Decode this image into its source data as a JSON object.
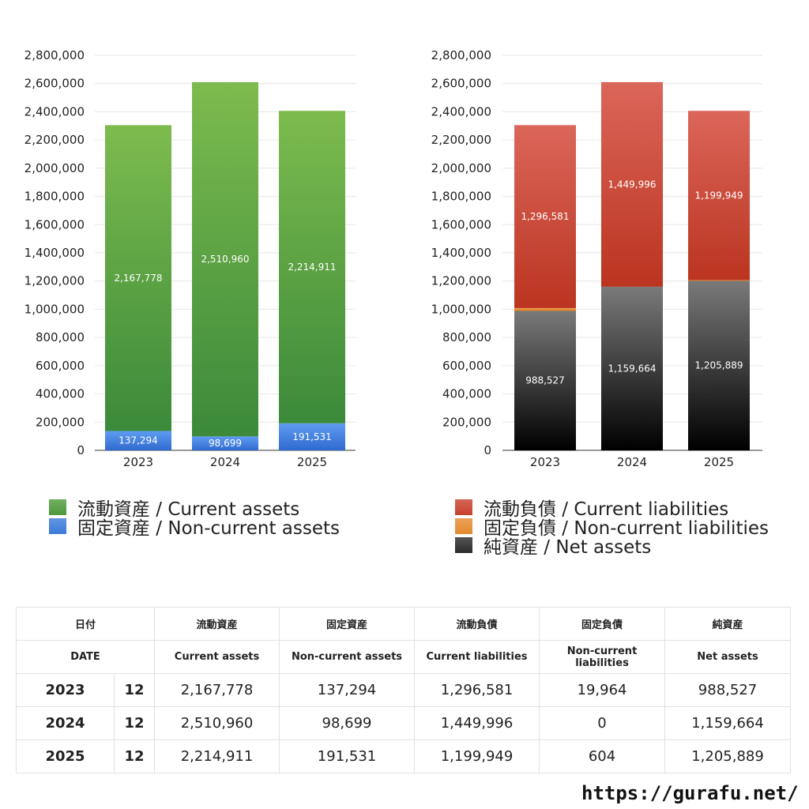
{
  "chart_data": [
    {
      "type": "bar",
      "stacked": true,
      "categories": [
        "2023",
        "2024",
        "2025"
      ],
      "ylim": [
        0,
        2800000
      ],
      "yticks": [
        "0",
        "200,000",
        "400,000",
        "600,000",
        "800,000",
        "1,000,000",
        "1,200,000",
        "1,400,000",
        "1,600,000",
        "1,800,000",
        "2,000,000",
        "2,200,000",
        "2,400,000",
        "2,600,000",
        "2,800,000"
      ],
      "grid": true,
      "series": [
        {
          "name": "固定資産 / Non-current assets",
          "color": "#3a7ad9",
          "values": [
            137294,
            98699,
            191531
          ],
          "labels": [
            "137,294",
            "98,699",
            "191,531"
          ]
        },
        {
          "name": "流動資産 / Current assets",
          "color": "#4e9a3b",
          "values": [
            2167778,
            2510960,
            2214911
          ],
          "labels": [
            "2,167,778",
            "2,510,960",
            "2,214,911"
          ]
        }
      ]
    },
    {
      "type": "bar",
      "stacked": true,
      "categories": [
        "2023",
        "2024",
        "2025"
      ],
      "ylim": [
        0,
        2800000
      ],
      "yticks": [
        "0",
        "200,000",
        "400,000",
        "600,000",
        "800,000",
        "1,000,000",
        "1,200,000",
        "1,400,000",
        "1,600,000",
        "1,800,000",
        "2,000,000",
        "2,200,000",
        "2,400,000",
        "2,600,000",
        "2,800,000"
      ],
      "grid": true,
      "series": [
        {
          "name": "純資産 / Net assets",
          "color": "#2a2a2a",
          "values": [
            988527,
            1159664,
            1205889
          ],
          "labels": [
            "988,527",
            "1,159,664",
            "1,205,889"
          ]
        },
        {
          "name": "固定負債 / Non-current liabilities",
          "color": "#e58a2e",
          "values": [
            19964,
            0,
            604
          ],
          "labels": [
            "19,964",
            "",
            "604"
          ]
        },
        {
          "name": "流動負債 / Current liabilities",
          "color": "#c9412e",
          "values": [
            1296581,
            1449996,
            1199949
          ],
          "labels": [
            "1,296,581",
            "1,449,996",
            "1,199,949"
          ]
        }
      ]
    }
  ],
  "legend_left": [
    {
      "label": "流動資産 / Current assets",
      "color": "#4e9a3b"
    },
    {
      "label": "固定資産 / Non-current assets",
      "color": "#3a7ad9"
    }
  ],
  "legend_right": [
    {
      "label": "流動負債 / Current liabilities",
      "color": "#c9412e"
    },
    {
      "label": "固定負債 / Non-current liabilities",
      "color": "#e58a2e"
    },
    {
      "label": "純資産 / Net assets",
      "color": "#2a2a2a"
    }
  ],
  "table": {
    "header_jp": [
      "日付",
      "流動資産",
      "固定資産",
      "流動負債",
      "固定負債",
      "純資産"
    ],
    "header_en": [
      "DATE",
      "Current assets",
      "Non-current assets",
      "Current liabilities",
      "Non-current liabilities",
      "Net assets"
    ],
    "rows": [
      {
        "year": "2023",
        "month": "12",
        "values": [
          "2,167,778",
          "137,294",
          "1,296,581",
          "19,964",
          "988,527"
        ]
      },
      {
        "year": "2024",
        "month": "12",
        "values": [
          "2,510,960",
          "98,699",
          "1,449,996",
          "0",
          "1,159,664"
        ]
      },
      {
        "year": "2025",
        "month": "12",
        "values": [
          "2,214,911",
          "191,531",
          "1,199,949",
          "604",
          "1,205,889"
        ]
      }
    ]
  },
  "url": "https://gurafu.net/"
}
